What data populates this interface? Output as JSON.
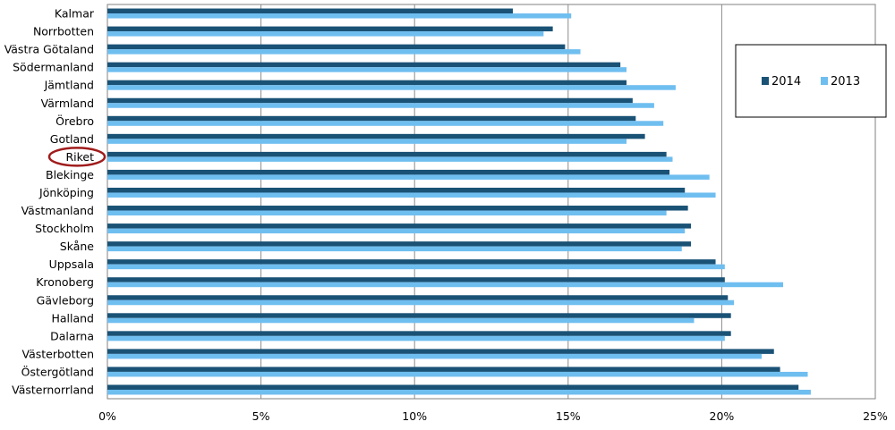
{
  "chart_data": {
    "type": "bar",
    "orientation": "horizontal",
    "title": "",
    "xlabel": "",
    "ylabel": "",
    "categories": [
      "Kalmar",
      "Norrbotten",
      "Västra Götaland",
      "Södermanland",
      "Jämtland",
      "Värmland",
      "Örebro",
      "Gotland",
      "Riket",
      "Blekinge",
      "Jönköping",
      "Västmanland",
      "Stockholm",
      "Skåne",
      "Uppsala",
      "Kronoberg",
      "Gävleborg",
      "Halland",
      "Dalarna",
      "Västerbotten",
      "Östergötland",
      "Västernorrland"
    ],
    "highlighted_category": "Riket",
    "series": [
      {
        "name": "2014",
        "color": "#1a5276",
        "values": [
          13.2,
          14.5,
          14.9,
          16.7,
          16.9,
          17.1,
          17.2,
          17.5,
          18.2,
          18.3,
          18.8,
          18.9,
          19.0,
          19.0,
          19.8,
          20.1,
          20.2,
          20.3,
          20.3,
          21.7,
          21.9,
          22.5
        ]
      },
      {
        "name": "2013",
        "color": "#6fbef0",
        "values": [
          15.1,
          14.2,
          15.4,
          16.9,
          18.5,
          17.8,
          18.1,
          16.9,
          18.4,
          19.6,
          19.8,
          18.2,
          18.8,
          18.7,
          20.1,
          22.0,
          20.4,
          19.1,
          20.1,
          21.3,
          22.8,
          22.9
        ]
      }
    ],
    "xlim": [
      0,
      25
    ],
    "xticks": [
      "0%",
      "5%",
      "10%",
      "15%",
      "20%",
      "25%"
    ],
    "grid": true,
    "legend_position": "right"
  }
}
